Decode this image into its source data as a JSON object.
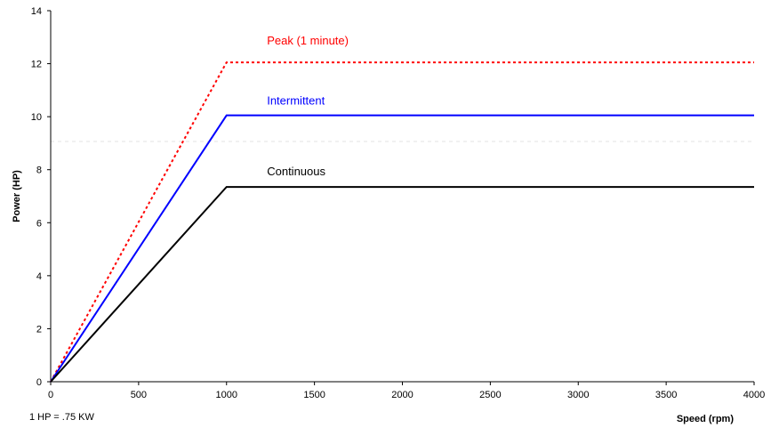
{
  "chart_data": {
    "type": "line",
    "title": "",
    "xlabel": "Speed (rpm)",
    "ylabel": "Power (HP)",
    "xlim": [
      0,
      4000
    ],
    "ylim": [
      0,
      14
    ],
    "x_ticks": [
      0,
      500,
      1000,
      1500,
      2000,
      2500,
      3000,
      3500,
      4000
    ],
    "y_ticks": [
      0,
      2,
      4,
      6,
      8,
      10,
      12,
      14
    ],
    "grid": false,
    "legend": "none (labels placed on chart)",
    "series": [
      {
        "name": "Peak (1 minute)",
        "color": "#ff0000",
        "line_style": "dotted",
        "x": [
          0,
          1000,
          4000
        ],
        "y": [
          0,
          12.05,
          12.05
        ]
      },
      {
        "name": "Intermittent",
        "color": "#0000ff",
        "line_style": "solid",
        "x": [
          0,
          1000,
          4000
        ],
        "y": [
          0,
          10.05,
          10.05
        ]
      },
      {
        "name": "Continuous",
        "color": "#000000",
        "line_style": "solid",
        "x": [
          0,
          1000,
          4000
        ],
        "y": [
          0,
          7.35,
          7.35
        ]
      }
    ],
    "annotations": [
      {
        "text": "1 HP = .75 KW"
      }
    ]
  }
}
